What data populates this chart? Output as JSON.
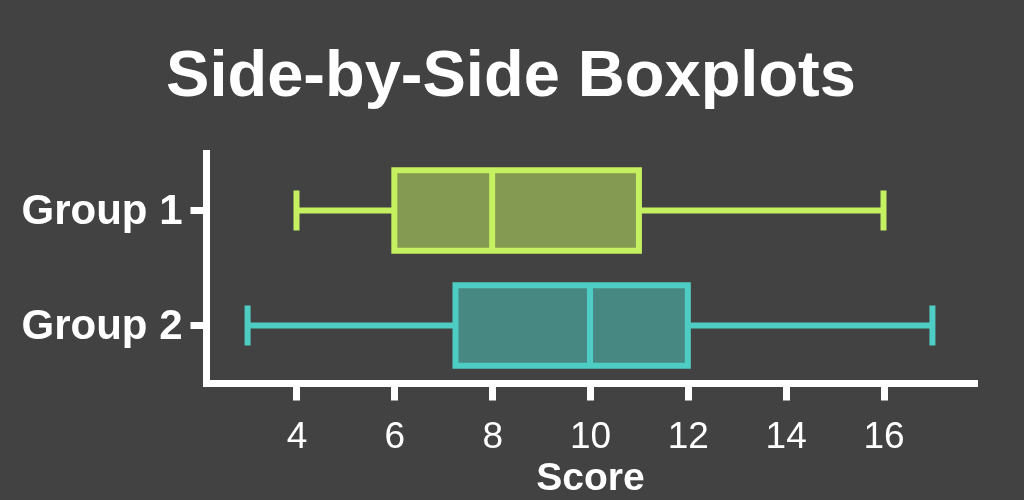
{
  "chart_data": {
    "type": "box",
    "title": "Side-by-Side Boxplots",
    "xlabel": "Score",
    "orientation": "horizontal",
    "categories": [
      "Group 1",
      "Group 2"
    ],
    "colors": [
      "#c5f060",
      "#4ecdc4"
    ],
    "boxes": [
      {
        "low": 4,
        "q1": 6,
        "median": 8,
        "q3": 11,
        "high": 16
      },
      {
        "low": 3,
        "q1": 7.25,
        "median": 10,
        "q3": 12,
        "high": 17
      }
    ],
    "xlim": [
      2.15,
      17.85
    ],
    "xticks": [
      4,
      6,
      8,
      10,
      12,
      14,
      16
    ]
  }
}
